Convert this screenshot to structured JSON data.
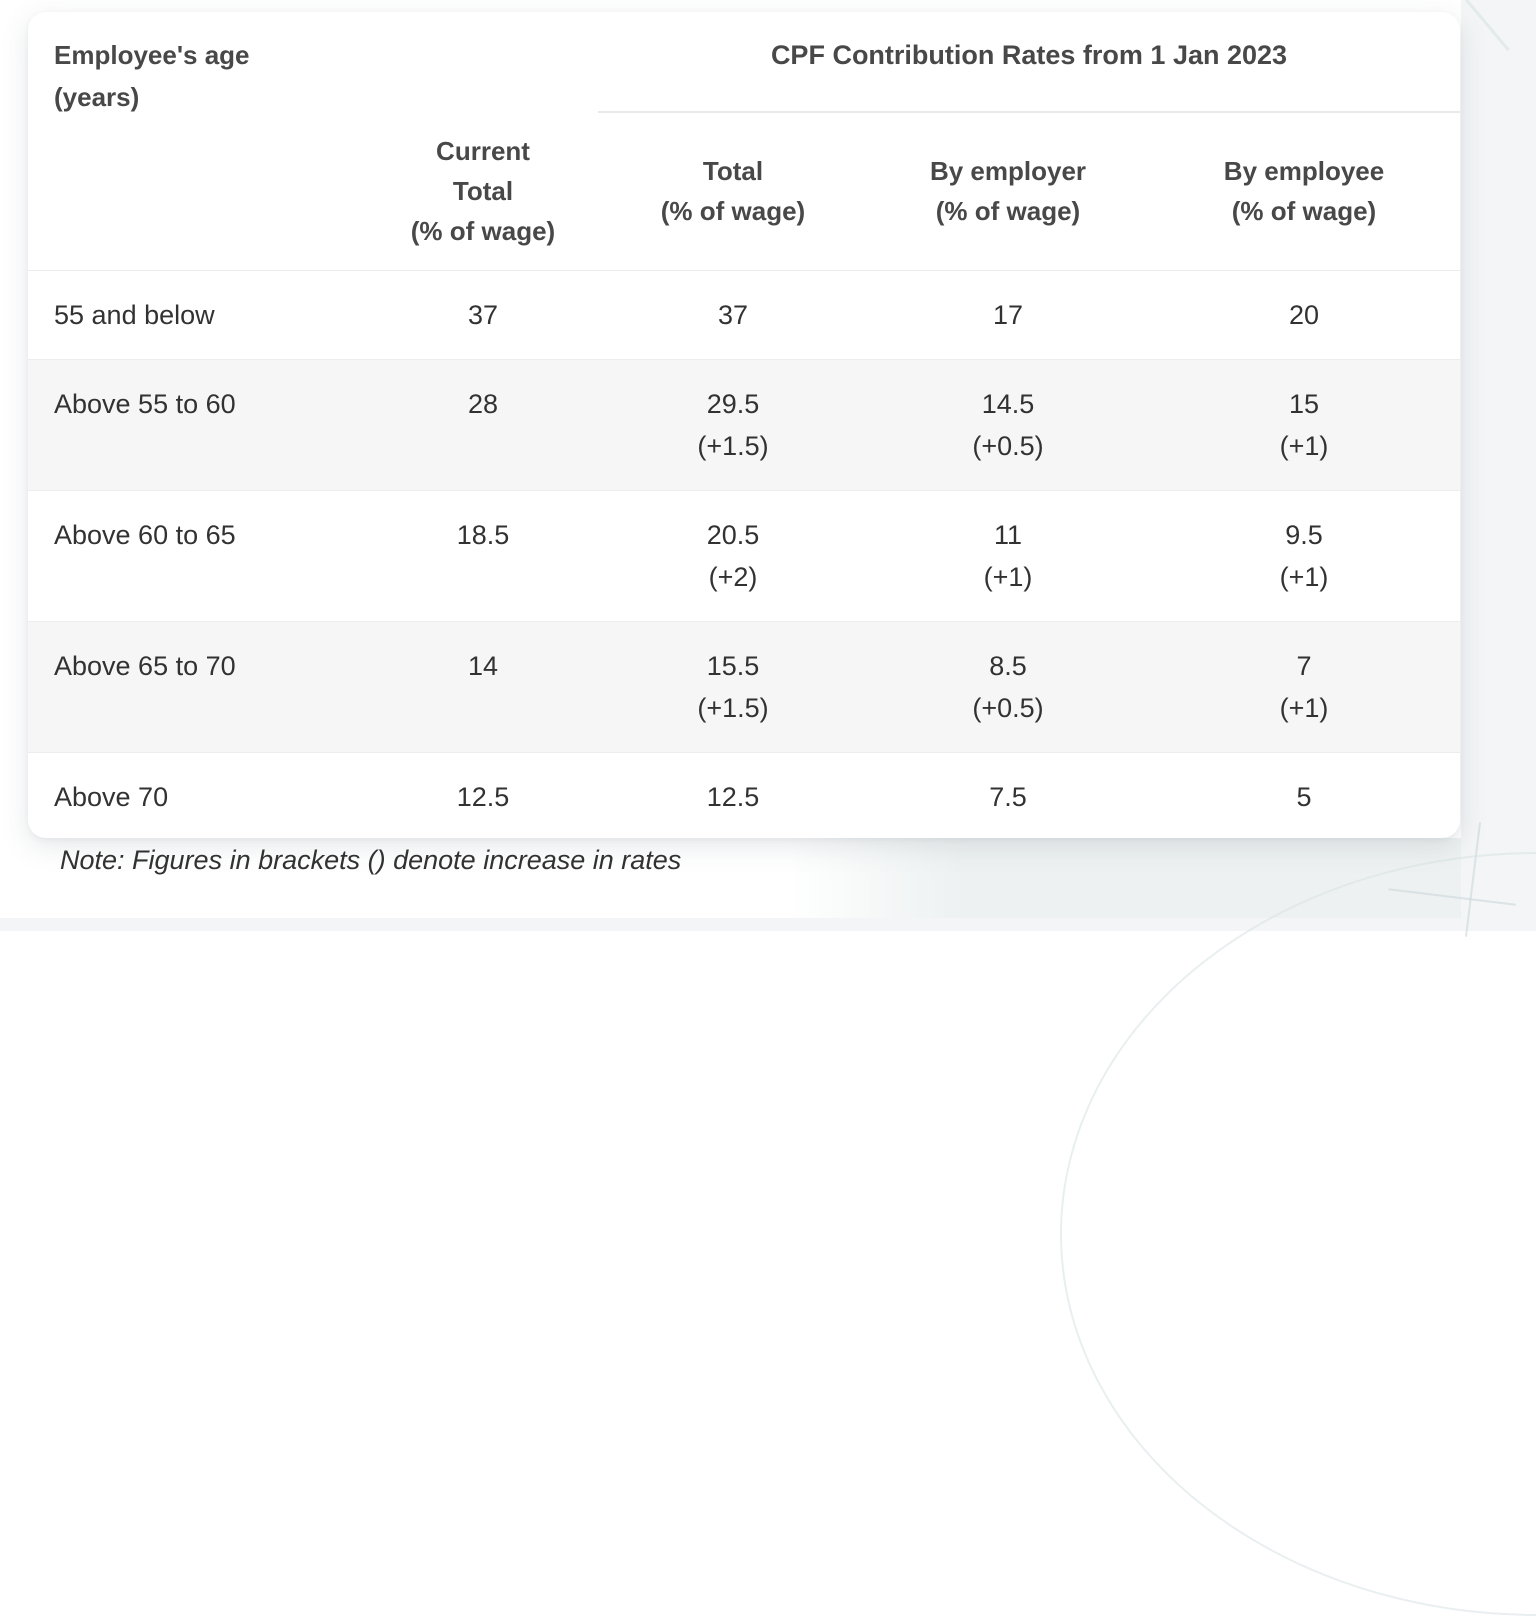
{
  "headers": {
    "age": {
      "l1": "Employee's age",
      "l2": "(years)"
    },
    "group": "CPF Contribution Rates from 1 Jan 2023",
    "current": {
      "l1": "Current",
      "l2": "Total",
      "l3": "(% of wage)"
    },
    "total": {
      "l1": "Total",
      "l2": "(% of wage)"
    },
    "employer": {
      "l1": "By employer",
      "l2": "(% of wage)"
    },
    "employee": {
      "l1": "By employee",
      "l2": "(% of wage)"
    }
  },
  "rows": [
    {
      "age": "55 and below",
      "current": "37",
      "total": "37",
      "total_note": "",
      "employer": "17",
      "employer_note": "",
      "employee": "20",
      "employee_note": ""
    },
    {
      "age": "Above 55 to 60",
      "current": "28",
      "total": "29.5",
      "total_note": "(+1.5)",
      "employer": "14.5",
      "employer_note": "(+0.5)",
      "employee": "15",
      "employee_note": "(+1)"
    },
    {
      "age": "Above 60 to 65",
      "current": "18.5",
      "total": "20.5",
      "total_note": "(+2)",
      "employer": "11",
      "employer_note": "(+1)",
      "employee": "9.5",
      "employee_note": "(+1)"
    },
    {
      "age": "Above 65 to 70",
      "current": "14",
      "total": "15.5",
      "total_note": "(+1.5)",
      "employer": "8.5",
      "employer_note": "(+0.5)",
      "employee": "7",
      "employee_note": "(+1)"
    },
    {
      "age": "Above 70",
      "current": "12.5",
      "total": "12.5",
      "total_note": "",
      "employer": "7.5",
      "employer_note": "",
      "employee": "5",
      "employee_note": ""
    }
  ],
  "note": "Note: Figures in brackets () denote increase in rates",
  "colors": {
    "row_alternate": "#f6f6f6",
    "divider": "#ededed",
    "header_text": "#484848",
    "body_text": "#323232",
    "page_side_panel": "#f3f5f6",
    "card_background": "#ffffff"
  },
  "chart_data": {
    "type": "table",
    "title": "CPF Contribution Rates from 1 Jan 2023",
    "columns": [
      "Employee's age (years)",
      "Current Total (% of wage)",
      "Total (% of wage)",
      "By employer (% of wage)",
      "By employee (% of wage)"
    ],
    "rows": [
      [
        "55 and below",
        "37",
        "37",
        "17",
        "20"
      ],
      [
        "Above 55 to 60",
        "28",
        "29.5 (+1.5)",
        "14.5 (+0.5)",
        "15 (+1)"
      ],
      [
        "Above 60 to 65",
        "18.5",
        "20.5 (+2)",
        "11 (+1)",
        "9.5 (+1)"
      ],
      [
        "Above 65 to 70",
        "14",
        "15.5 (+1.5)",
        "8.5 (+0.5)",
        "7 (+1)"
      ],
      [
        "Above 70",
        "12.5",
        "12.5",
        "7.5",
        "5"
      ]
    ],
    "note": "Note: Figures in brackets () denote increase in rates"
  }
}
